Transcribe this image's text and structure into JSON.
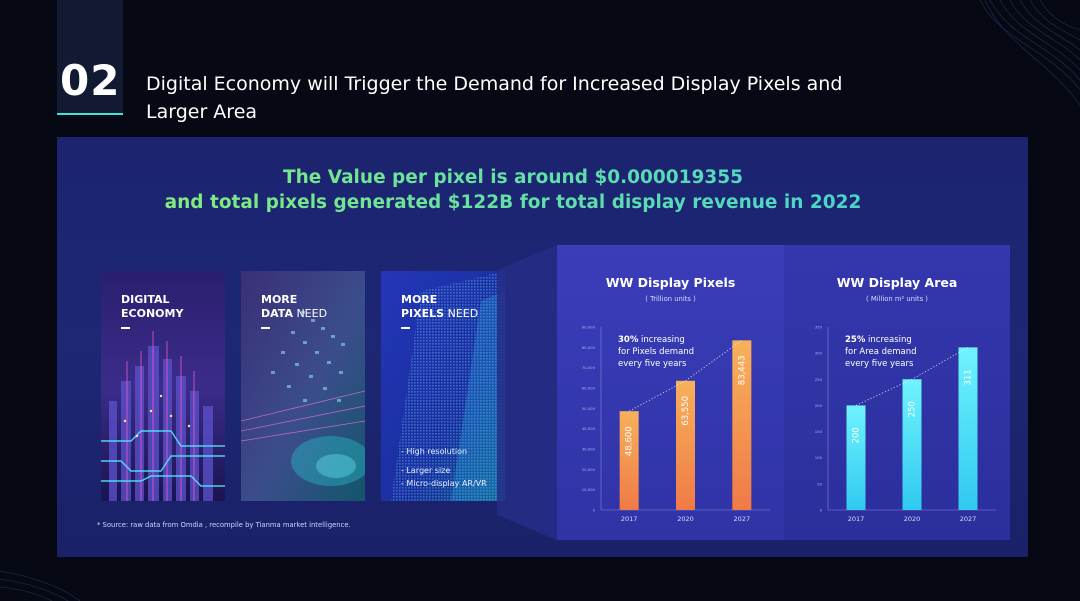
{
  "header": {
    "section_number": "02",
    "title_line1": "Digital Economy will Trigger the Demand for Increased Display Pixels and",
    "title_line2": "Larger Area"
  },
  "headline": {
    "line1": "The Value per pixel is around $0.000019355",
    "line2": "and total pixels generated $122B for total display revenue in 2022"
  },
  "cards": [
    {
      "title_line1": "DIGITAL",
      "title_line2_bold": "ECONOMY",
      "title_line2_light": ""
    },
    {
      "title_line1": "MORE",
      "title_line2_bold": "DATA",
      "title_line2_light": " NEED"
    },
    {
      "title_line1": "MORE",
      "title_line2_bold": "PIXELS",
      "title_line2_light": " NEED",
      "bullets": [
        "- High resolution",
        "- Larger size",
        "- Micro-display AR/VR"
      ]
    }
  ],
  "source_note": "* Source: raw data from Omdia , recompile by Tianma market intelligence.",
  "colors": {
    "accent_teal": "#3ee6d6",
    "panel_bg": "#1c2470",
    "orange_bar_top": "#f7b15a",
    "orange_bar_bottom": "#f07a47",
    "cyan_bar_top": "#6ff3ff",
    "cyan_bar_bottom": "#31c9f0"
  },
  "chart_data": [
    {
      "type": "bar",
      "title": "WW Display Pixels",
      "subtitle": "( Trillion units )",
      "categories": [
        "2017",
        "2020",
        "2027"
      ],
      "values": [
        48600,
        63550,
        83443
      ],
      "value_labels": [
        "48,600",
        "63,550",
        "83,443"
      ],
      "yticks": [
        0,
        10000,
        20000,
        30000,
        40000,
        50000,
        60000,
        70000,
        80000,
        90000
      ],
      "ytick_labels": [
        "0",
        "10,000",
        "20,000",
        "30,000",
        "40,000",
        "50,000",
        "60,000",
        "70,000",
        "80,000",
        "90,000"
      ],
      "ylim": [
        0,
        90000
      ],
      "annotation_bold": "30%",
      "annotation_rest1": " increasing",
      "annotation_line2": "for Pixels demand",
      "annotation_line3": "every five years",
      "trend_line": "dotted",
      "bar_color": "orange"
    },
    {
      "type": "bar",
      "title": "WW Display Area",
      "subtitle": "( Million m² units )",
      "categories": [
        "2017",
        "2020",
        "2027"
      ],
      "values": [
        200,
        250,
        311
      ],
      "value_labels": [
        "200",
        "250",
        "311"
      ],
      "yticks": [
        0,
        50,
        100,
        150,
        200,
        250,
        300,
        350
      ],
      "ytick_labels": [
        "0",
        "50",
        "100",
        "150",
        "200",
        "250",
        "300",
        "350"
      ],
      "ylim": [
        0,
        350
      ],
      "annotation_bold": "25%",
      "annotation_rest1": " increasing",
      "annotation_line2": "for Area demand",
      "annotation_line3": "every five years",
      "trend_line": "dotted",
      "bar_color": "cyan"
    }
  ]
}
